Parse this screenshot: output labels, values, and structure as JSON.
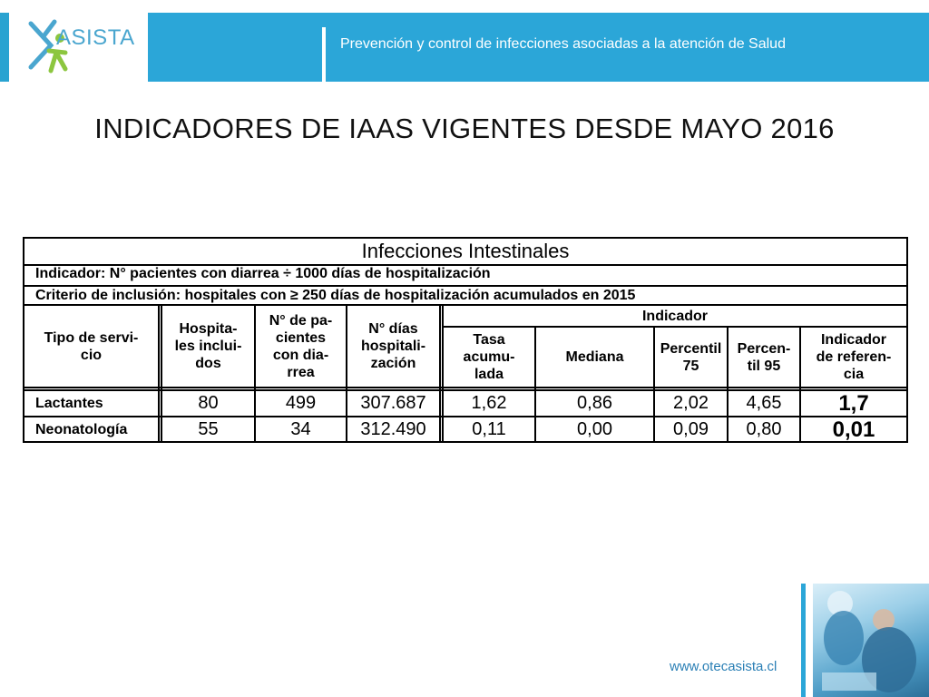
{
  "header": {
    "logo_text": "ASISTA",
    "tagline": "Prevención y control de infecciones asociadas a la atención de Salud"
  },
  "slide": {
    "title": "INDICADORES DE IAAS VIGENTES DESDE MAYO 2016"
  },
  "table": {
    "title": "Infecciones Intestinales",
    "indicator": "Indicador: N° pacientes con diarrea ÷ 1000 días de hospitalización",
    "criterio": "Criterio de inclusión: hospitales con ≥ 250 días de hospitalización acumulados en 2015",
    "headers": {
      "tipo": "Tipo de servi-\ncio",
      "hospitales": "Hospita-\nles inclui-\ndos",
      "pacientes": "N° de pa-\ncientes\ncon dia-\nrrea",
      "dias": "N° días\nhospitali-\nzación",
      "indicador_group": "Indicador",
      "tasa": "Tasa\nacumu-\nlada",
      "mediana": "Mediana",
      "p75": "Percentil\n75",
      "p95": "Percen-\ntil 95",
      "referencia": "Indicador\nde referen-\ncia"
    },
    "rows": [
      {
        "tipo": "Lactantes",
        "hospitales": "80",
        "pacientes": "499",
        "dias": "307.687",
        "tasa": "1,62",
        "mediana": "0,86",
        "p75": "2,02",
        "p95": "4,65",
        "referencia": "1,7"
      },
      {
        "tipo": "Neonatología",
        "hospitales": "55",
        "pacientes": "34",
        "dias": "312.490",
        "tasa": "0,11",
        "mediana": "0,00",
        "p75": "0,09",
        "p95": "0,80",
        "referencia": "0,01"
      }
    ]
  },
  "footer": {
    "url": "www.otecasista.cl"
  },
  "colors": {
    "brand_blue": "#2ba6d8",
    "logo_green": "#8cc63f"
  }
}
